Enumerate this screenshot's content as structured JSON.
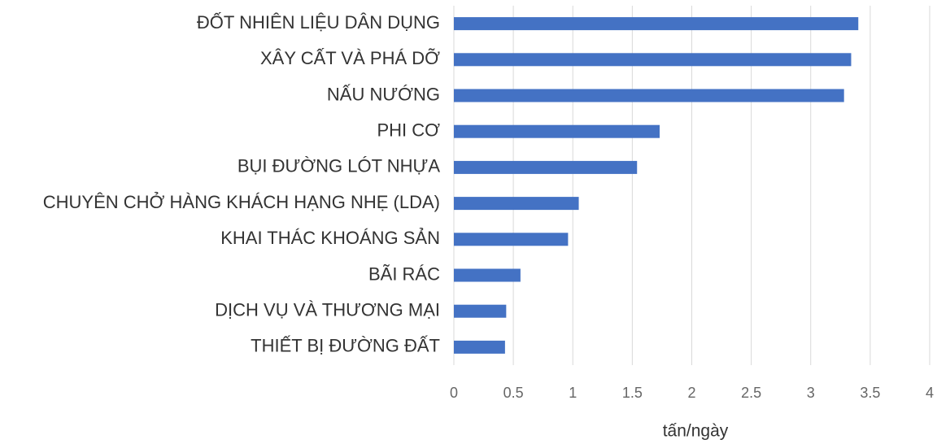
{
  "chart_data": {
    "type": "bar",
    "orientation": "horizontal",
    "x_label": "tấn/ngày",
    "categories": [
      "ĐỐT NHIÊN LIỆU DÂN DỤNG",
      "XÂY CẤT VÀ PHÁ DỠ",
      "NẤU NƯỚNG",
      "PHI CƠ",
      "BỤI ĐƯỜNG LÓT NHỰA",
      "CHUYÊN CHỞ HÀNG KHÁCH HẠNG NHẸ (LDA)",
      "KHAI THÁC KHOÁNG SẢN",
      "BÃI RÁC",
      "DỊCH VỤ VÀ THƯƠNG MẠI",
      "THIẾT BỊ ĐƯỜNG ĐẤT"
    ],
    "values": [
      3.4,
      3.34,
      3.28,
      1.73,
      1.54,
      1.05,
      0.96,
      0.56,
      0.44,
      0.43
    ],
    "color": "#4472c4",
    "xlim": [
      0,
      4
    ],
    "xticks": [
      0,
      0.5,
      1,
      1.5,
      2,
      2.5,
      3,
      3.5,
      4
    ],
    "grid": true
  }
}
